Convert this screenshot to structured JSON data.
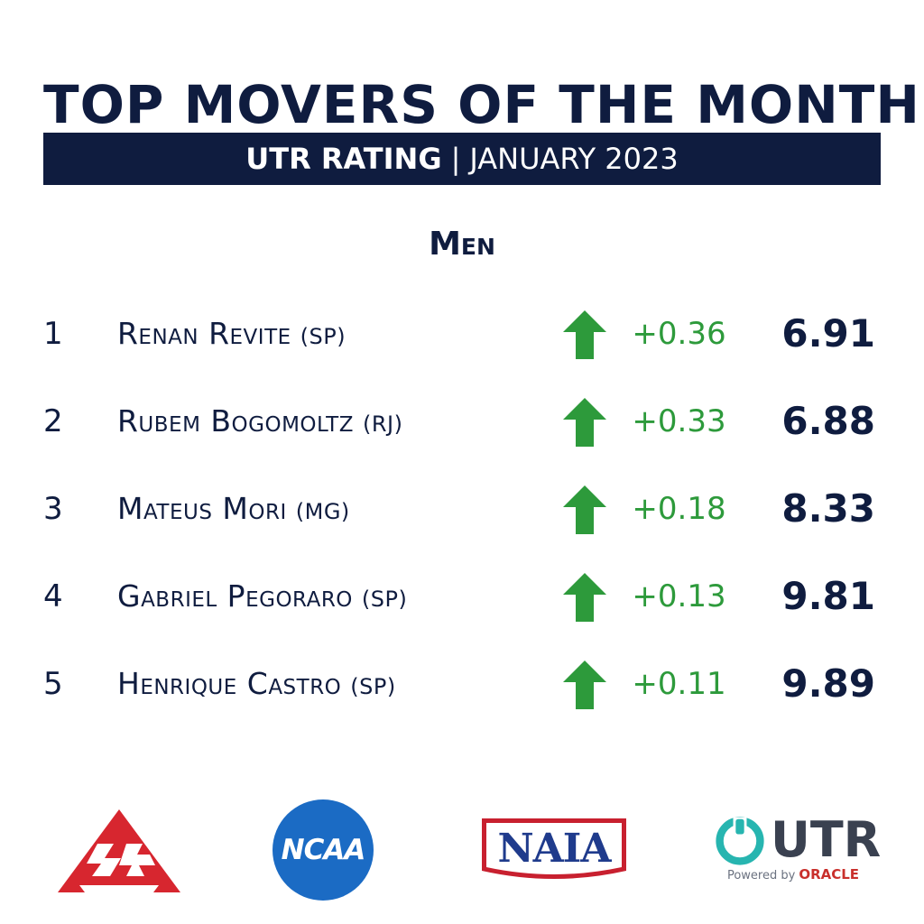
{
  "header": {
    "title": "TOP MOVERS OF THE MONTH",
    "subtitle_bold": "UTR RATING",
    "subtitle_separator": "|",
    "subtitle_rest": "JANUARY 2023"
  },
  "section_title": "Men",
  "rows": [
    {
      "rank": "1",
      "name": "Renan Revite",
      "state": "(SP)",
      "change": "+0.36",
      "rating": "6.91"
    },
    {
      "rank": "2",
      "name": "Rubem Bogomoltz",
      "state": "(RJ)",
      "change": "+0.33",
      "rating": "6.88"
    },
    {
      "rank": "3",
      "name": "Mateus Mori",
      "state": "(MG)",
      "change": "+0.18",
      "rating": "8.33"
    },
    {
      "rank": "4",
      "name": "Gabriel Pegoraro",
      "state": "(SP)",
      "change": "+0.13",
      "rating": "9.81"
    },
    {
      "rank": "5",
      "name": "Henrique Castro",
      "state": "(SP)",
      "change": "+0.11",
      "rating": "9.89"
    }
  ],
  "logos": {
    "ncaa": "NCAA",
    "naia": "NAIA",
    "utr": "UTR",
    "utr_powered": "Powered by",
    "utr_oracle": "ORACLE"
  },
  "colors": {
    "navy": "#0f1c3f",
    "green_up": "#2d9a3b",
    "csa_red": "#d7262f",
    "ncaa_blue": "#1b6bc4",
    "naia_red": "#c8202f",
    "utr_teal": "#27b5b0"
  },
  "icons": {
    "up_arrow": "arrow-up-icon",
    "csa_logo": "csa-logo",
    "ncaa_logo": "ncaa-logo",
    "naia_logo": "naia-logo",
    "utr_logo": "utr-logo"
  }
}
